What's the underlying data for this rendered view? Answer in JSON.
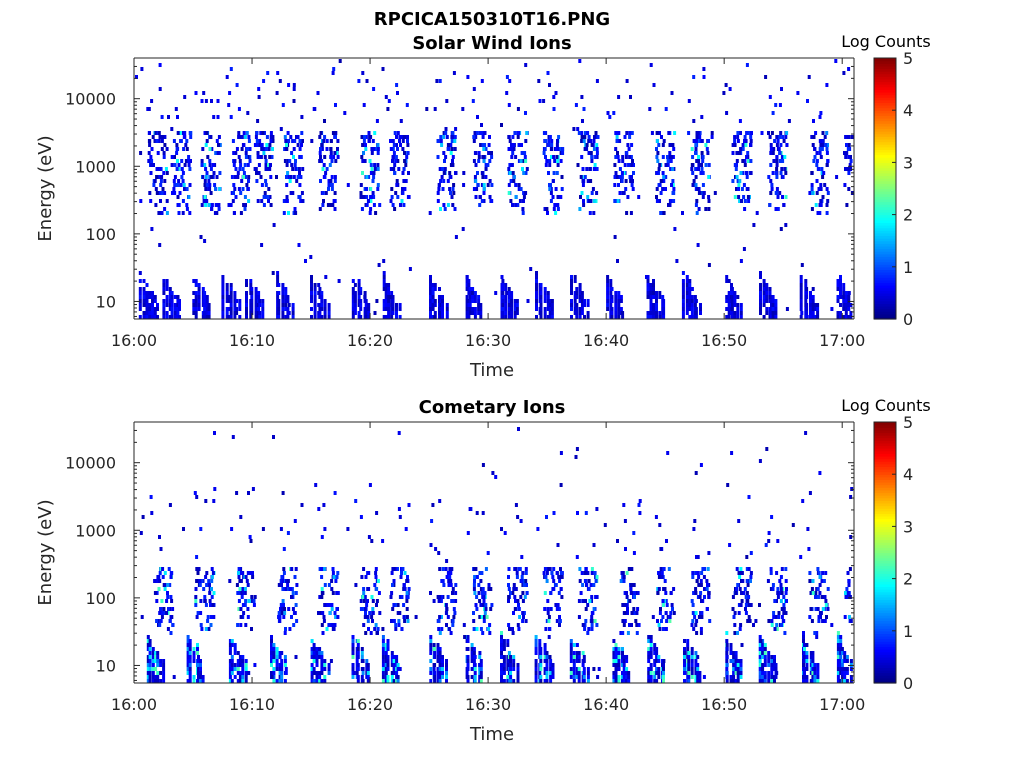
{
  "figure": {
    "main_title": "RPCICA150310T16.PNG"
  },
  "chart_data": [
    {
      "type": "heatmap",
      "title": "Solar Wind Ions",
      "xlabel": "Time",
      "ylabel": "Energy (eV)",
      "x_ticks": [
        "16:00",
        "16:10",
        "16:20",
        "16:30",
        "16:40",
        "16:50",
        "17:00"
      ],
      "x_range_minutes": [
        0,
        61
      ],
      "y_scale": "log",
      "y_ticks": [
        10,
        100,
        1000,
        10000
      ],
      "y_tick_labels": [
        "10",
        "100",
        "1000",
        "10000"
      ],
      "y_range": [
        5.5,
        40000
      ],
      "colorbar": {
        "label": "Log Counts",
        "range": [
          0,
          5
        ],
        "ticks": [
          "0",
          "1",
          "2",
          "3",
          "4",
          "5"
        ],
        "colormap": "jet"
      },
      "bursts_minutes": [
        0.5,
        2.5,
        5,
        7.5,
        9.5,
        12,
        15,
        18.5,
        21,
        25,
        28,
        31,
        34,
        37,
        40,
        43.5,
        46.5,
        50,
        53,
        56.5,
        59.5
      ],
      "bands": {
        "low_energy_eV": [
          6,
          28
        ],
        "mid_energy_eV": [
          200,
          3000
        ],
        "high_energy_eV": [
          3000,
          30000
        ]
      },
      "peak_log_counts": 2.2
    },
    {
      "type": "heatmap",
      "title": "Cometary Ions",
      "xlabel": "Time",
      "ylabel": "Energy (eV)",
      "x_ticks": [
        "16:00",
        "16:10",
        "16:20",
        "16:30",
        "16:40",
        "16:50",
        "17:00"
      ],
      "x_range_minutes": [
        0,
        61
      ],
      "y_scale": "log",
      "y_ticks": [
        10,
        100,
        1000,
        10000
      ],
      "y_tick_labels": [
        "10",
        "100",
        "1000",
        "10000"
      ],
      "y_range": [
        5.5,
        40000
      ],
      "colorbar": {
        "label": "Log Counts",
        "range": [
          0,
          5
        ],
        "ticks": [
          "0",
          "1",
          "2",
          "3",
          "4",
          "5"
        ],
        "colormap": "jet"
      },
      "bursts_minutes": [
        1,
        4.5,
        8,
        11.5,
        15,
        18.5,
        21,
        25,
        28,
        31,
        34,
        37,
        40.5,
        43.5,
        46.5,
        50,
        53,
        56.5,
        59.5
      ],
      "bands": {
        "low_energy_eV": [
          6,
          30
        ],
        "mid_energy_eV": [
          30,
          250
        ],
        "high_energy_eV": [
          400,
          3500
        ]
      },
      "peak_log_counts": 2.3
    }
  ]
}
